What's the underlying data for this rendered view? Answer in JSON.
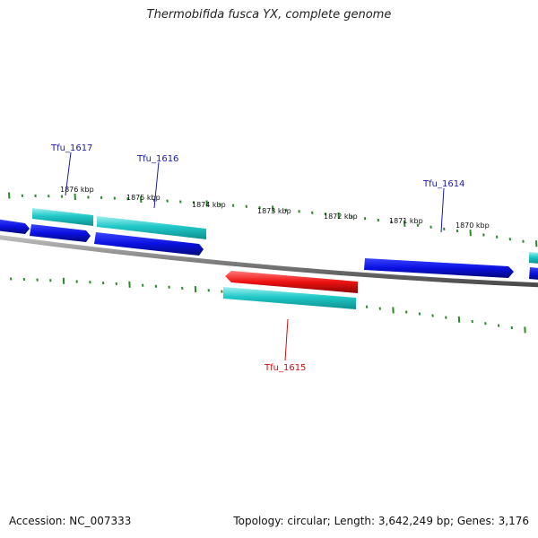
{
  "title": "Thermobifida fusca YX, complete genome",
  "footer": {
    "accession": "Accession: NC_007333",
    "summary": "Topology: circular; Length: 3,642,249 bp; Genes: 3,176"
  },
  "colors": {
    "forward_cds": "#0a10e0",
    "forward_gene": "#20c8c8",
    "reverse_cds": "#ee1111",
    "reverse_gene": "#20c8c8",
    "backbone": "#808080",
    "ticks": "#2a8a2a",
    "forward_label": "#1a1aaa",
    "reverse_label": "#cc1111"
  },
  "scale_labels": [
    "1876 kbp",
    "1875 kbp",
    "1874 kbp",
    "1873 kbp",
    "1872 kbp",
    "1871 kbp",
    "1870 kbp"
  ],
  "genes": [
    {
      "name": "Tfu_1617",
      "strand": "forward"
    },
    {
      "name": "Tfu_1616",
      "strand": "forward"
    },
    {
      "name": "Tfu_1614",
      "strand": "forward"
    },
    {
      "name": "Tfu_1615",
      "strand": "reverse"
    }
  ]
}
